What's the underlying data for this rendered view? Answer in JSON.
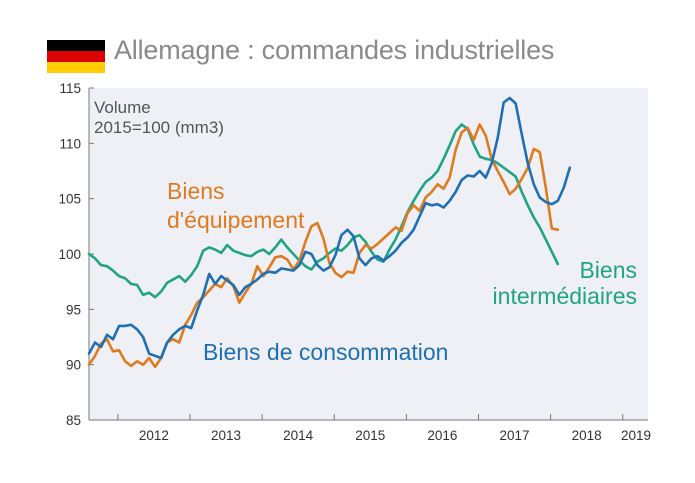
{
  "header": {
    "flag_icon": "germany-flag-icon",
    "flag_colors": [
      "#000000",
      "#dd0000",
      "#ffce00"
    ],
    "title": "Allemagne : commandes industrielles"
  },
  "chart_data": {
    "type": "line",
    "title": "Allemagne : commandes industrielles",
    "unit_line1": "Volume",
    "unit_line2": "2015=100 (mm3)",
    "ylim": [
      85,
      115
    ],
    "yticks": [
      85,
      90,
      95,
      100,
      105,
      110,
      115
    ],
    "xlim": [
      2011.6,
      2019.35
    ],
    "xticks": [
      "2012",
      "2013",
      "2014",
      "2015",
      "2016",
      "2017",
      "2018",
      "2019"
    ],
    "grid": false,
    "background": "#eef0f5",
    "series": [
      {
        "name": "Biens de consommation",
        "label_lines": [
          "Biens de consommation"
        ],
        "color": "#1f6fb5",
        "x_start": 2011.6,
        "step": 0.08333,
        "values": [
          91.0,
          92.0,
          91.6,
          92.7,
          92.3,
          93.5,
          93.5,
          93.6,
          93.2,
          92.5,
          91.0,
          90.8,
          90.6,
          92.0,
          92.7,
          93.2,
          93.5,
          93.3,
          94.9,
          96.3,
          98.2,
          97.3,
          98.0,
          97.6,
          97.2,
          96.3,
          97.0,
          97.3,
          97.7,
          98.2,
          98.4,
          98.3,
          98.7,
          98.6,
          98.5,
          99.0,
          100.2,
          100.0,
          99.0,
          98.5,
          98.8,
          99.9,
          101.7,
          102.2,
          101.6,
          99.6,
          99.0,
          99.6,
          99.8,
          99.4,
          99.8,
          100.3,
          101.0,
          101.5,
          102.2,
          103.4,
          104.6,
          104.4,
          104.5,
          104.2,
          104.8,
          105.6,
          106.7,
          107.1,
          107.0,
          107.5,
          106.9,
          108.2,
          110.5,
          113.7,
          114.1,
          113.6,
          110.8,
          108.2,
          106.3,
          105.1,
          104.7,
          104.5,
          104.8,
          106.0,
          107.8
        ]
      },
      {
        "name": "Biens d'équipement",
        "label_lines": [
          "Biens",
          "d'équipement"
        ],
        "color": "#e07a1f",
        "x_start": 2011.6,
        "step": 0.08333,
        "values": [
          90.0,
          90.8,
          91.9,
          92.3,
          91.2,
          91.3,
          90.3,
          89.9,
          90.3,
          90.0,
          90.6,
          89.8,
          90.6,
          92.0,
          92.3,
          92.0,
          93.6,
          94.5,
          95.6,
          96.1,
          96.7,
          97.3,
          97.0,
          97.8,
          97.1,
          95.6,
          96.5,
          97.3,
          98.9,
          98.0,
          98.8,
          99.7,
          99.8,
          99.5,
          98.6,
          99.4,
          101.1,
          102.5,
          102.8,
          101.4,
          99.2,
          98.3,
          97.9,
          98.4,
          98.3,
          100.1,
          100.8,
          100.5,
          100.9,
          101.4,
          101.9,
          102.4,
          102.1,
          103.7,
          104.4,
          103.9,
          105.1,
          105.6,
          106.3,
          105.9,
          106.9,
          109.4,
          111.0,
          111.4,
          110.3,
          111.7,
          110.7,
          108.6,
          107.5,
          106.5,
          105.4,
          105.9,
          106.8,
          107.8,
          109.5,
          109.2,
          106.0,
          102.3,
          102.2
        ]
      },
      {
        "name": "Biens intermédiaires",
        "label_lines": [
          "Biens",
          "intermédiaires"
        ],
        "color": "#20a483",
        "x_start": 2011.6,
        "step": 0.08333,
        "values": [
          100.0,
          99.6,
          99.0,
          98.9,
          98.5,
          98.0,
          97.8,
          97.3,
          97.2,
          96.3,
          96.5,
          96.1,
          96.6,
          97.4,
          97.7,
          98.0,
          97.5,
          98.1,
          98.9,
          100.3,
          100.6,
          100.4,
          100.1,
          100.8,
          100.3,
          100.1,
          99.9,
          99.8,
          100.2,
          100.4,
          100.0,
          100.6,
          101.3,
          100.6,
          100.0,
          99.4,
          98.9,
          98.6,
          99.3,
          99.6,
          100.1,
          100.5,
          100.3,
          100.8,
          101.5,
          101.7,
          101.1,
          100.2,
          99.5,
          99.3,
          100.4,
          101.3,
          102.5,
          103.8,
          104.8,
          105.7,
          106.5,
          106.9,
          107.5,
          108.6,
          109.8,
          111.1,
          111.7,
          111.3,
          109.9,
          108.8,
          108.6,
          108.5,
          108.2,
          107.8,
          107.4,
          107.0,
          105.6,
          104.4,
          103.3,
          102.4,
          101.3,
          100.2,
          99.1
        ]
      }
    ]
  }
}
